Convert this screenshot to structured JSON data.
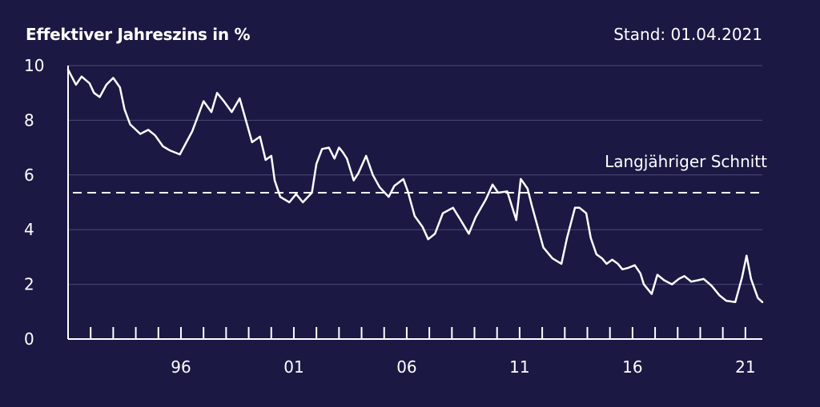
{
  "chart_data": {
    "type": "line",
    "title": "Effektiver Jahreszins in %",
    "stand": "Stand: 01.04.2021",
    "xlim": [
      1991,
      2021.75
    ],
    "ylim": [
      0,
      10
    ],
    "ytick_labels": [
      "0",
      "2",
      "4",
      "6",
      "8",
      "10"
    ],
    "ytick_values": [
      0,
      2,
      4,
      6,
      8,
      10
    ],
    "xtick_labels": [
      "96",
      "01",
      "06",
      "11",
      "16",
      "21"
    ],
    "xtick_values": [
      1996,
      2001,
      2006,
      2011,
      2016,
      2021
    ],
    "minor_tick_step": 1,
    "grid": true,
    "reference_line": {
      "label": "Langjähriger Schnitt",
      "value": 5.35
    },
    "series": [
      {
        "x": [
          1991.0,
          1991.35,
          1991.6,
          1991.95,
          1992.15,
          1992.4,
          1992.7,
          1993.0,
          1993.3,
          1993.5,
          1993.75,
          1994.2,
          1994.55,
          1994.85,
          1995.2,
          1995.5,
          1995.95,
          1996.5,
          1997.0,
          1997.35,
          1997.6,
          1997.9,
          1998.25,
          1998.6,
          1999.15,
          1999.5,
          1999.75,
          2000.0,
          2000.15,
          2000.4,
          2000.8,
          2001.1,
          2001.4,
          2001.8,
          2002.0,
          2002.25,
          2002.55,
          2002.8,
          2003.0,
          2003.15,
          2003.35,
          2003.65,
          2003.85,
          2004.2,
          2004.5,
          2004.8,
          2005.2,
          2005.45,
          2005.85,
          2006.05,
          2006.35,
          2006.7,
          2006.95,
          2007.25,
          2007.6,
          2008.05,
          2008.35,
          2008.75,
          2009.05,
          2009.5,
          2009.8,
          2010.05,
          2010.45,
          2010.85,
          2011.05,
          2011.35,
          2011.55,
          2011.8,
          2012.05,
          2012.45,
          2012.85,
          2013.1,
          2013.45,
          2013.65,
          2013.95,
          2014.15,
          2014.4,
          2014.65,
          2014.85,
          2015.1,
          2015.35,
          2015.55,
          2015.8,
          2016.1,
          2016.35,
          2016.5,
          2016.85,
          2017.1,
          2017.4,
          2017.75,
          2018.05,
          2018.3,
          2018.6,
          2018.9,
          2019.15,
          2019.5,
          2019.85,
          2020.15,
          2020.55,
          2020.85,
          2021.05,
          2021.25,
          2021.55,
          2021.75
        ],
        "values": [
          9.85,
          9.3,
          9.6,
          9.35,
          9.0,
          8.85,
          9.3,
          9.55,
          9.2,
          8.4,
          7.85,
          7.5,
          7.65,
          7.45,
          7.05,
          6.9,
          6.75,
          7.6,
          8.7,
          8.3,
          9.0,
          8.7,
          8.3,
          8.8,
          7.2,
          7.4,
          6.55,
          6.7,
          5.8,
          5.2,
          5.0,
          5.3,
          5.0,
          5.35,
          6.4,
          6.95,
          7.0,
          6.6,
          7.0,
          6.85,
          6.6,
          5.8,
          6.05,
          6.7,
          6.0,
          5.55,
          5.2,
          5.6,
          5.85,
          5.4,
          4.5,
          4.1,
          3.65,
          3.85,
          4.6,
          4.8,
          4.4,
          3.85,
          4.45,
          5.1,
          5.65,
          5.35,
          5.4,
          4.35,
          5.85,
          5.5,
          4.85,
          4.1,
          3.35,
          2.95,
          2.75,
          3.7,
          4.8,
          4.8,
          4.6,
          3.7,
          3.1,
          2.95,
          2.75,
          2.9,
          2.75,
          2.55,
          2.6,
          2.7,
          2.4,
          2.0,
          1.65,
          2.35,
          2.15,
          2.0,
          2.2,
          2.3,
          2.1,
          2.15,
          2.2,
          1.95,
          1.6,
          1.4,
          1.35,
          2.25,
          3.05,
          2.2,
          1.5,
          1.35
        ]
      }
    ]
  }
}
